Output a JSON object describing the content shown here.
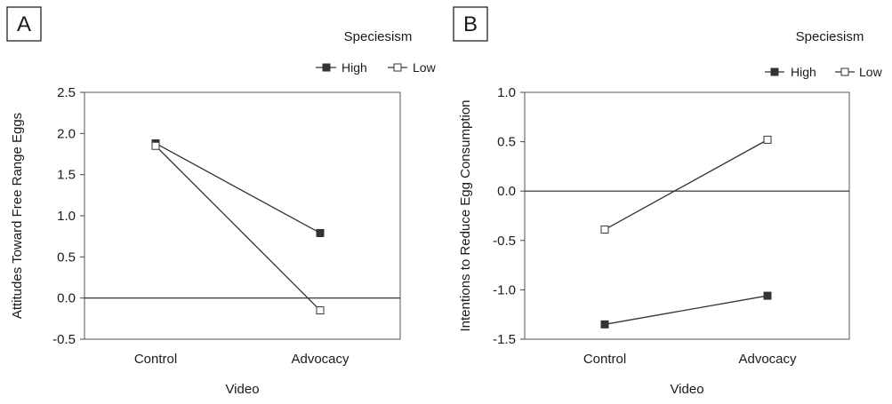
{
  "chart_data": [
    {
      "type": "line",
      "panel_label": "A",
      "categories": [
        "Control",
        "Advocacy"
      ],
      "series": [
        {
          "name": "High",
          "values": [
            1.88,
            0.79
          ],
          "marker": "filled-square",
          "color": "#333333"
        },
        {
          "name": "Low",
          "values": [
            1.85,
            -0.15
          ],
          "marker": "open-square",
          "color": "#333333"
        }
      ],
      "xlabel": "Video",
      "ylabel": "Attitudes Toward Free Range Eggs",
      "ylim": [
        -0.5,
        2.5
      ],
      "yticks": [
        2.5,
        2.0,
        1.5,
        1.0,
        0.5,
        0.0,
        -0.5
      ],
      "ytick_labels": [
        "2.5",
        "2.0",
        "1.5",
        "1.0",
        "0.5",
        "0.0",
        "-0.5"
      ],
      "legend_title": "Speciesism",
      "legend_placement": "top-right",
      "zero_line": true,
      "grid": false
    },
    {
      "type": "line",
      "panel_label": "B",
      "categories": [
        "Control",
        "Advocacy"
      ],
      "series": [
        {
          "name": "High",
          "values": [
            -1.35,
            -1.06
          ],
          "marker": "filled-square",
          "color": "#333333"
        },
        {
          "name": "Low",
          "values": [
            -0.39,
            0.52
          ],
          "marker": "open-square",
          "color": "#333333"
        }
      ],
      "xlabel": "Video",
      "ylabel": "Intentions to Reduce Egg Consumption",
      "ylim": [
        -1.5,
        1.0
      ],
      "yticks": [
        1.0,
        0.5,
        0.0,
        -0.5,
        -1.0,
        -1.5
      ],
      "ytick_labels": [
        "1.0",
        "0.5",
        "0.0",
        "-0.5",
        "-1.0",
        "-1.5"
      ],
      "legend_title": "Speciesism",
      "legend_placement": "top-right",
      "zero_line": true,
      "grid": false
    }
  ]
}
